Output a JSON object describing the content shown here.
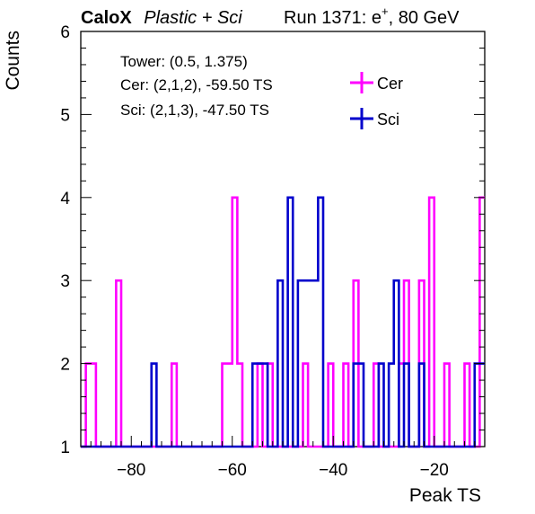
{
  "header": {
    "brand": "CaloX",
    "subtitle": "Plastic + Sci",
    "run_prefix": "Run 1371: e",
    "run_charge": "+",
    "run_suffix": ", 80 GeV"
  },
  "info": {
    "tower": "Tower: (0.5, 1.375)",
    "cer": "Cer: (2,1,2), -59.50 TS",
    "sci": "Sci: (2,1,3), -47.50 TS"
  },
  "chart_data": {
    "type": "histogram",
    "xlabel": "Peak TS",
    "ylabel": "Counts",
    "xlim": [
      -90,
      -10
    ],
    "ylim": [
      1,
      6
    ],
    "x_ticks": [
      -80,
      -60,
      -40,
      -20
    ],
    "y_ticks": [
      1,
      2,
      3,
      4,
      5,
      6
    ],
    "bin_width": 1,
    "legend_position": "top-right",
    "series": [
      {
        "name": "Cer",
        "color": "#ff00ff",
        "bins": [
          {
            "x": -88.5,
            "y": 2
          },
          {
            "x": -87.5,
            "y": 2
          },
          {
            "x": -82.5,
            "y": 3
          },
          {
            "x": -71.5,
            "y": 2
          },
          {
            "x": -61.5,
            "y": 2
          },
          {
            "x": -60.5,
            "y": 2
          },
          {
            "x": -59.5,
            "y": 4
          },
          {
            "x": -58.5,
            "y": 2
          },
          {
            "x": -54.5,
            "y": 2
          },
          {
            "x": -52.5,
            "y": 2
          },
          {
            "x": -45.5,
            "y": 2
          },
          {
            "x": -40.5,
            "y": 2
          },
          {
            "x": -37.5,
            "y": 2
          },
          {
            "x": -35.5,
            "y": 3
          },
          {
            "x": -31.5,
            "y": 2
          },
          {
            "x": -26.5,
            "y": 2
          },
          {
            "x": -25.5,
            "y": 3
          },
          {
            "x": -22.5,
            "y": 3
          },
          {
            "x": -20.5,
            "y": 4
          },
          {
            "x": -17.5,
            "y": 2
          },
          {
            "x": -13.5,
            "y": 2
          },
          {
            "x": -10.5,
            "y": 4
          }
        ]
      },
      {
        "name": "Sci",
        "color": "#0000cc",
        "bins": [
          {
            "x": -75.5,
            "y": 2
          },
          {
            "x": -55.5,
            "y": 2
          },
          {
            "x": -54.5,
            "y": 2
          },
          {
            "x": -53.5,
            "y": 2
          },
          {
            "x": -50.5,
            "y": 3
          },
          {
            "x": -48.5,
            "y": 4
          },
          {
            "x": -46.5,
            "y": 3
          },
          {
            "x": -45.5,
            "y": 3
          },
          {
            "x": -44.5,
            "y": 3
          },
          {
            "x": -43.5,
            "y": 3
          },
          {
            "x": -42.5,
            "y": 4
          },
          {
            "x": -35.5,
            "y": 2
          },
          {
            "x": -34.5,
            "y": 2
          },
          {
            "x": -30.5,
            "y": 2
          },
          {
            "x": -28.5,
            "y": 2
          },
          {
            "x": -27.5,
            "y": 3
          },
          {
            "x": -25.5,
            "y": 2
          },
          {
            "x": -22.5,
            "y": 2
          },
          {
            "x": -11.5,
            "y": 2
          },
          {
            "x": -10.5,
            "y": 2
          }
        ]
      }
    ]
  }
}
